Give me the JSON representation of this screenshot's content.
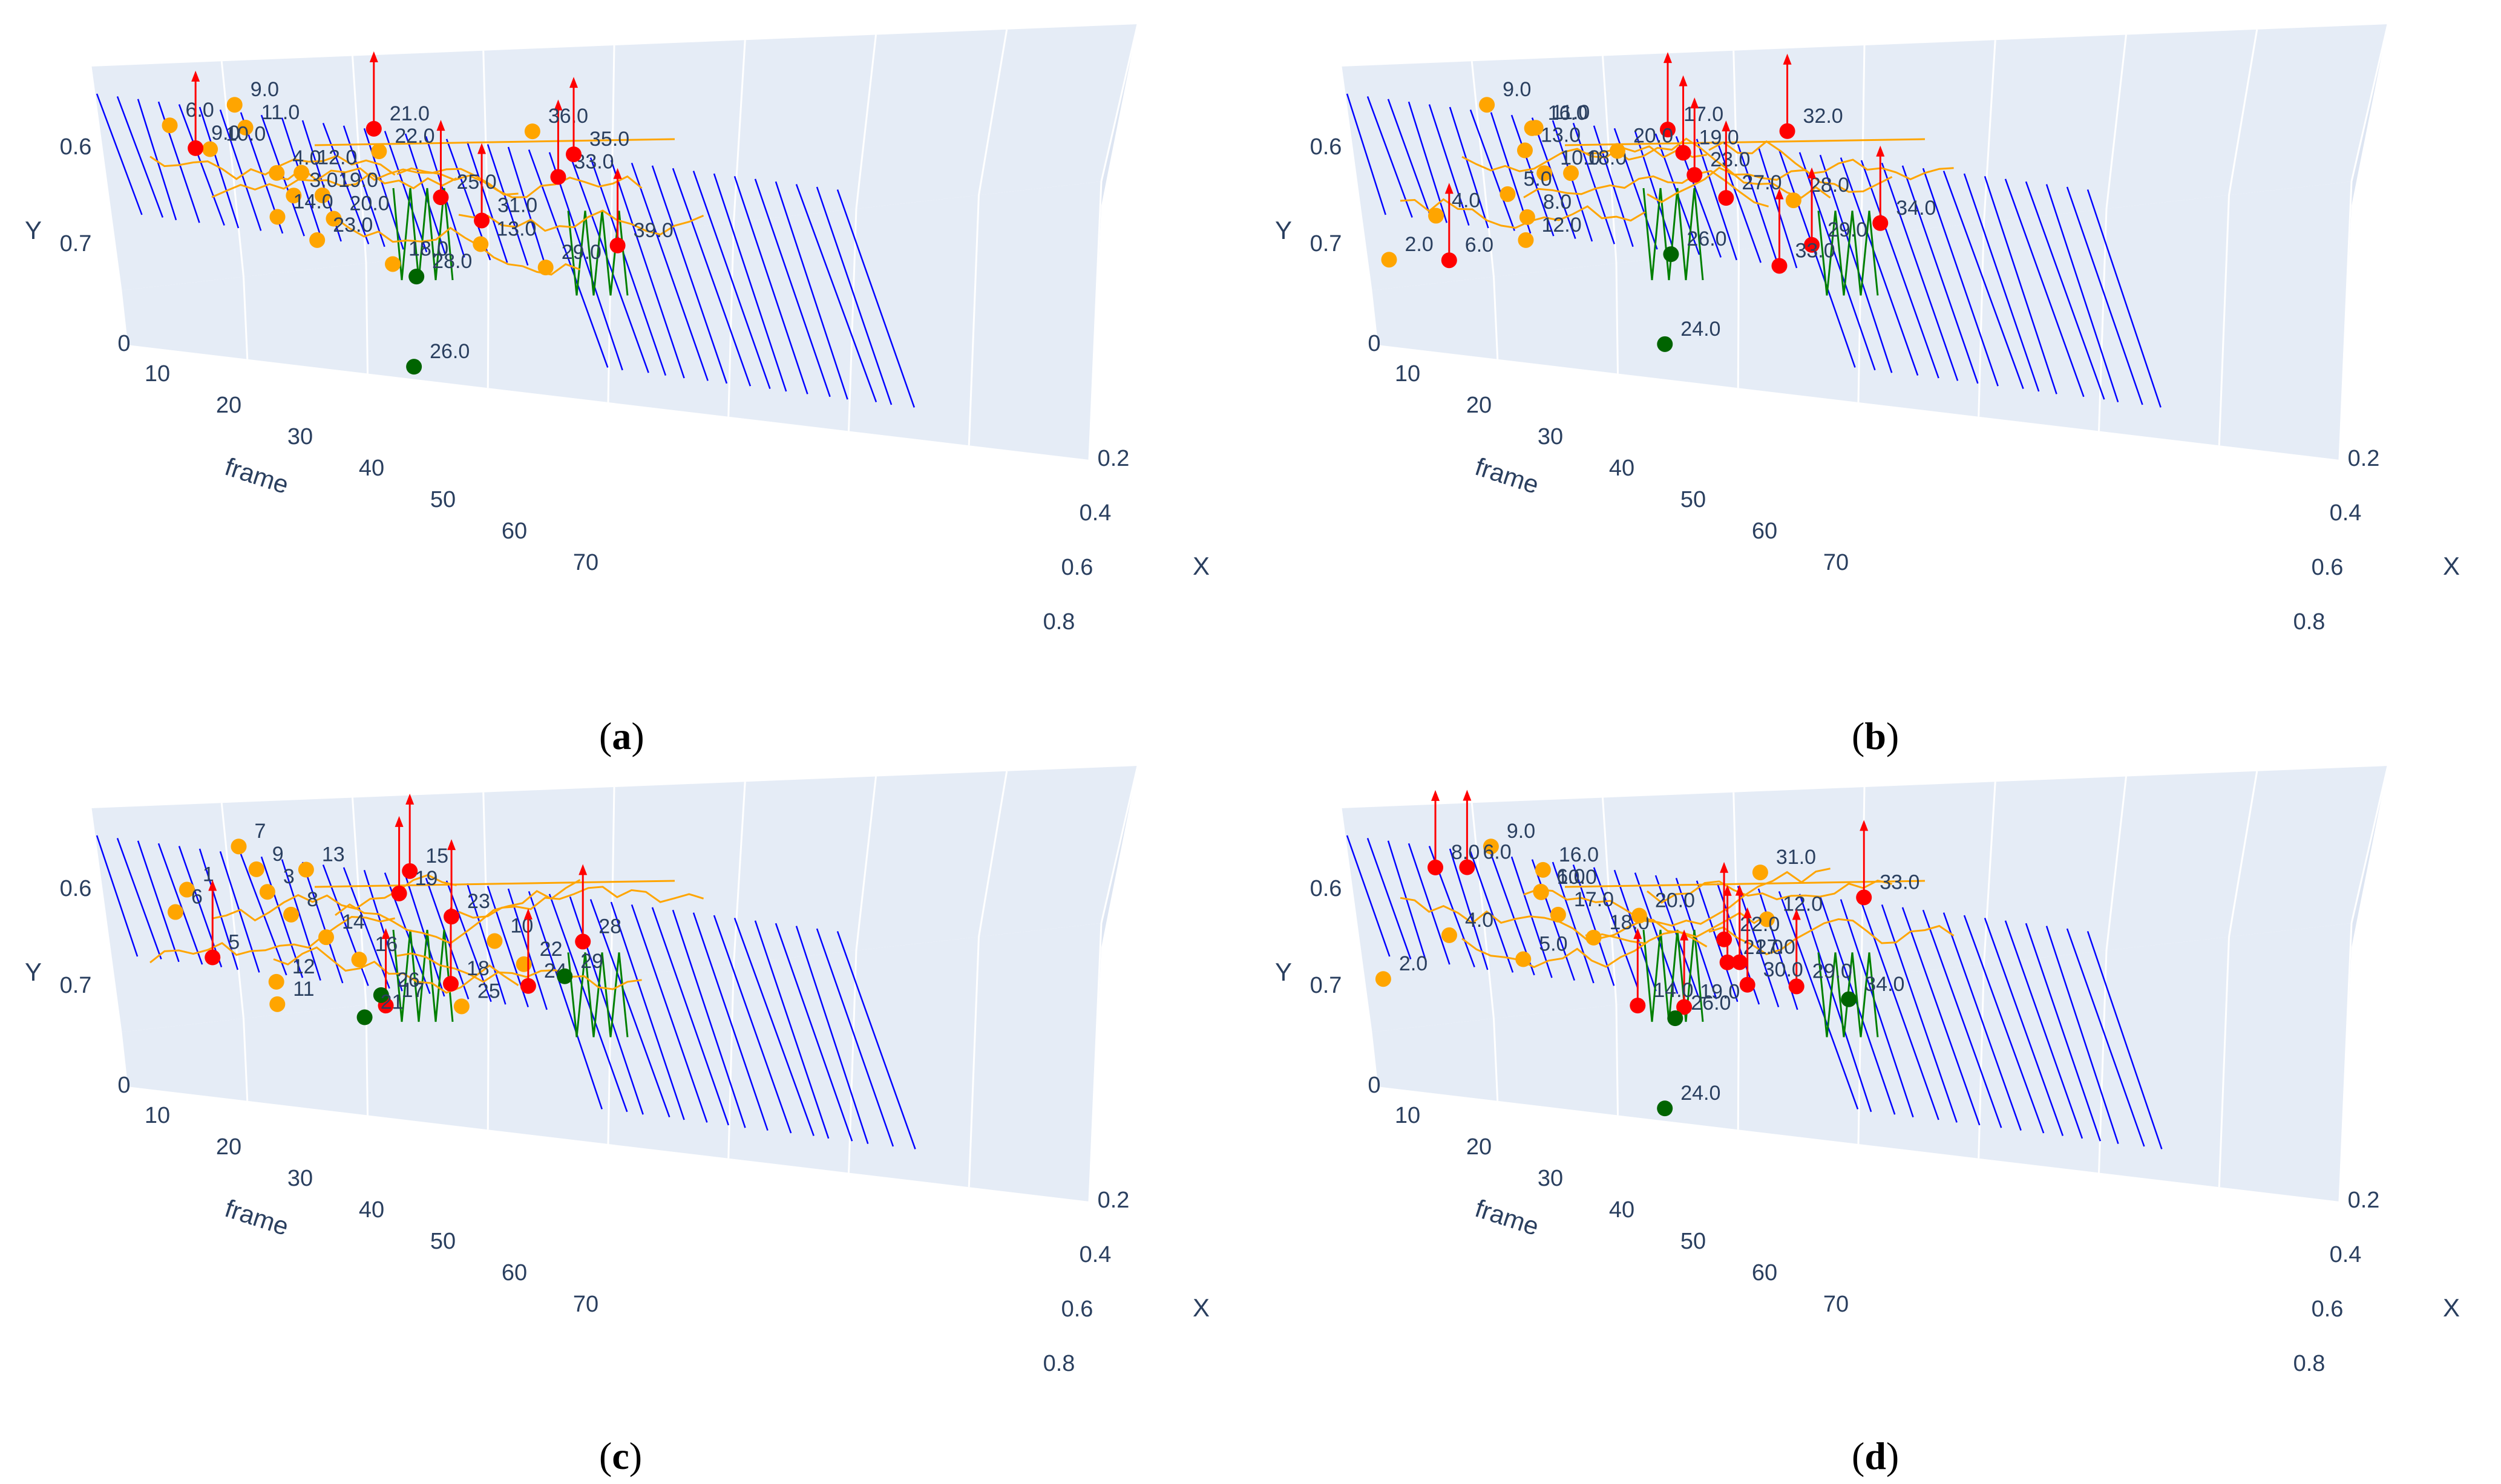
{
  "figure": {
    "colors": {
      "scene_bg": "#e5ecf6",
      "grid": "#ffffff",
      "tick_text": "#2a3f5f",
      "blue_lines": "#0000ff",
      "green": "#008000",
      "orange": "#ffa500",
      "red": "#ff0000",
      "dark_green": "#006400"
    }
  },
  "chart_data": [
    {
      "type": "scatter3d",
      "panel": "a",
      "caption_open": "(",
      "caption_letter": "a",
      "caption_close": ")",
      "xlabel": "frame",
      "ylabel": "Y",
      "zlabel": "X",
      "frame_ticks": [
        "10",
        "20",
        "30",
        "40",
        "50",
        "60",
        "70"
      ],
      "y_ticks": [
        "0.6",
        "0.7"
      ],
      "x_ticks": [
        "0.2",
        "0.4",
        "0.6",
        "0.8"
      ],
      "zero_tick": "0",
      "xlim": [
        0,
        80
      ],
      "blue_line_frames": [
        0,
        2,
        4,
        6,
        8,
        10,
        12,
        14,
        16,
        18,
        20,
        22,
        24,
        26,
        28,
        30,
        32,
        34,
        36,
        38,
        40,
        42,
        44,
        46,
        48,
        50,
        52,
        54,
        56,
        58,
        60,
        62,
        64,
        66,
        68,
        70,
        72
      ],
      "points": [
        {
          "label": "9.0",
          "frame": 12,
          "series": "orange"
        },
        {
          "label": "11.0",
          "frame": 14,
          "series": "orange"
        },
        {
          "label": "10.0",
          "frame": 10,
          "series": "orange"
        },
        {
          "label": "4.0",
          "frame": 17,
          "series": "orange"
        },
        {
          "label": "3.0",
          "frame": 18,
          "series": "orange"
        },
        {
          "label": "20.0",
          "frame": 22,
          "series": "orange"
        },
        {
          "label": "13.0",
          "frame": 37,
          "series": "orange"
        },
        {
          "label": "29.0",
          "frame": 42,
          "series": "orange"
        },
        {
          "label": "6.0",
          "frame": 6,
          "series": "orange"
        },
        {
          "label": "9.0",
          "frame": 8,
          "series": "red"
        },
        {
          "label": "12.0",
          "frame": 19,
          "series": "orange"
        },
        {
          "label": "19.0",
          "frame": 20,
          "series": "orange"
        },
        {
          "label": "14.0",
          "frame": 16,
          "series": "orange"
        },
        {
          "label": "23.0",
          "frame": 20,
          "series": "orange"
        },
        {
          "label": "18.0",
          "frame": 28,
          "series": "orange"
        },
        {
          "label": "21.0",
          "frame": 26,
          "series": "red"
        },
        {
          "label": "22.0",
          "frame": 27,
          "series": "orange"
        },
        {
          "label": "33.0",
          "frame": 43,
          "series": "red"
        },
        {
          "label": "25.0",
          "frame": 33,
          "series": "red"
        },
        {
          "label": "31.0",
          "frame": 37,
          "series": "red"
        },
        {
          "label": "39.0",
          "frame": 50,
          "series": "red"
        },
        {
          "label": "26.0",
          "frame": 30,
          "series": "green"
        },
        {
          "label": "36.0",
          "frame": 42,
          "series": "orange"
        },
        {
          "label": "35.0",
          "frame": 45,
          "series": "red"
        },
        {
          "label": "28.0",
          "frame": 30,
          "series": "green"
        }
      ]
    },
    {
      "type": "scatter3d",
      "panel": "b",
      "caption_open": "(",
      "caption_letter": "b",
      "caption_close": ")",
      "xlabel": "frame",
      "ylabel": "Y",
      "zlabel": "X",
      "frame_ticks": [
        "10",
        "20",
        "30",
        "40",
        "50",
        "60",
        "70"
      ],
      "y_ticks": [
        "0.6",
        "0.7"
      ],
      "x_ticks": [
        "0.2",
        "0.4",
        "0.6",
        "0.8"
      ],
      "zero_tick": "0",
      "xlim": [
        0,
        80
      ],
      "blue_line_frames": [
        0,
        2,
        4,
        6,
        8,
        10,
        12,
        14,
        16,
        18,
        20,
        22,
        24,
        26,
        28,
        30,
        32,
        34,
        36,
        38,
        40,
        42,
        44,
        46,
        48,
        50,
        52,
        54,
        56,
        58,
        60,
        62,
        64,
        66,
        68,
        70,
        72
      ],
      "points": [
        {
          "label": "9.0",
          "frame": 12,
          "series": "orange"
        },
        {
          "label": "16.0",
          "frame": 17,
          "series": "orange"
        },
        {
          "label": "13.0",
          "frame": 16,
          "series": "orange"
        },
        {
          "label": "10.0",
          "frame": 18,
          "series": "orange"
        },
        {
          "label": "28.0",
          "frame": 42,
          "series": "orange"
        },
        {
          "label": "4.0",
          "frame": 7,
          "series": "orange"
        },
        {
          "label": "12.0",
          "frame": 17,
          "series": "orange"
        },
        {
          "label": "2.0",
          "frame": 3,
          "series": "orange"
        },
        {
          "label": "11.0",
          "frame": 18,
          "series": "orange"
        },
        {
          "label": "19.0",
          "frame": 31,
          "series": "red"
        },
        {
          "label": "18.0",
          "frame": 21,
          "series": "orange"
        },
        {
          "label": "5.0",
          "frame": 14,
          "series": "orange"
        },
        {
          "label": "8.0",
          "frame": 17,
          "series": "orange"
        },
        {
          "label": "29.0",
          "frame": 44,
          "series": "red"
        },
        {
          "label": "6.0",
          "frame": 9,
          "series": "red"
        },
        {
          "label": "17.0",
          "frame": 30,
          "series": "red"
        },
        {
          "label": "20.0",
          "frame": 25,
          "series": "orange"
        },
        {
          "label": "23.0",
          "frame": 33,
          "series": "red"
        },
        {
          "label": "27.0",
          "frame": 36,
          "series": "red"
        },
        {
          "label": "34.0",
          "frame": 50,
          "series": "red"
        },
        {
          "label": "24.0",
          "frame": 29,
          "series": "green"
        },
        {
          "label": "33.0",
          "frame": 40,
          "series": "red"
        },
        {
          "label": "32.0",
          "frame": 41,
          "series": "red"
        },
        {
          "label": "26.0",
          "frame": 30,
          "series": "green"
        }
      ]
    },
    {
      "type": "scatter3d",
      "panel": "c",
      "caption_open": "(",
      "caption_letter": "c",
      "caption_close": ")",
      "xlabel": "frame",
      "ylabel": "Y",
      "zlabel": "X",
      "frame_ticks": [
        "10",
        "20",
        "30",
        "40",
        "50",
        "60",
        "70"
      ],
      "y_ticks": [
        "0.6",
        "0.7"
      ],
      "x_ticks": [
        "0.2",
        "0.4",
        "0.6",
        "0.8"
      ],
      "zero_tick": "0",
      "xlim": [
        0,
        80
      ],
      "blue_line_frames": [
        0,
        2,
        4,
        6,
        8,
        10,
        12,
        14,
        16,
        18,
        20,
        22,
        24,
        26,
        28,
        30,
        32,
        34,
        36,
        38,
        40,
        42,
        44,
        46,
        48,
        50,
        52,
        54,
        56,
        58,
        60,
        62,
        64,
        66,
        68,
        70,
        72
      ],
      "points": [
        {
          "label": "7",
          "frame": 12,
          "series": "orange"
        },
        {
          "label": "9",
          "frame": 14,
          "series": "orange"
        },
        {
          "label": "3",
          "frame": 15,
          "series": "orange"
        },
        {
          "label": "8",
          "frame": 17,
          "series": "orange"
        },
        {
          "label": "10",
          "frame": 37,
          "series": "orange"
        },
        {
          "label": "22",
          "frame": 41,
          "series": "orange"
        },
        {
          "label": "12",
          "frame": 17,
          "series": "orange"
        },
        {
          "label": "11",
          "frame": 17,
          "series": "orange"
        },
        {
          "label": "13",
          "frame": 19,
          "series": "orange"
        },
        {
          "label": "1",
          "frame": 7,
          "series": "orange"
        },
        {
          "label": "6",
          "frame": 7,
          "series": "orange"
        },
        {
          "label": "14",
          "frame": 21,
          "series": "orange"
        },
        {
          "label": "5",
          "frame": 10,
          "series": "red"
        },
        {
          "label": "24",
          "frame": 41,
          "series": "red"
        },
        {
          "label": "17",
          "frame": 27,
          "series": "red"
        },
        {
          "label": "15",
          "frame": 29,
          "series": "red"
        },
        {
          "label": "19",
          "frame": 29,
          "series": "red"
        },
        {
          "label": "23",
          "frame": 33,
          "series": "red"
        },
        {
          "label": "28",
          "frame": 46,
          "series": "red"
        },
        {
          "label": "16",
          "frame": 24,
          "series": "orange"
        },
        {
          "label": "18",
          "frame": 33,
          "series": "red"
        },
        {
          "label": "25",
          "frame": 34,
          "series": "orange"
        },
        {
          "label": "29",
          "frame": 44,
          "series": "green"
        },
        {
          "label": "26",
          "frame": 26,
          "series": "green"
        },
        {
          "label": "21",
          "frame": 25,
          "series": "green"
        }
      ]
    },
    {
      "type": "scatter3d",
      "panel": "d",
      "caption_open": "(",
      "caption_letter": "d",
      "caption_close": ")",
      "xlabel": "frame",
      "ylabel": "Y",
      "zlabel": "X",
      "frame_ticks": [
        "10",
        "20",
        "30",
        "40",
        "50",
        "60",
        "70"
      ],
      "y_ticks": [
        "0.6",
        "0.7"
      ],
      "x_ticks": [
        "0.2",
        "0.4",
        "0.6",
        "0.8"
      ],
      "zero_tick": "0",
      "xlim": [
        0,
        80
      ],
      "blue_line_frames": [
        0,
        2,
        4,
        6,
        8,
        10,
        12,
        14,
        16,
        18,
        20,
        22,
        24,
        26,
        28,
        30,
        32,
        34,
        36,
        38,
        40,
        42,
        44,
        46,
        48,
        50,
        52,
        54,
        56,
        58,
        60,
        62,
        64,
        66,
        68,
        70,
        72
      ],
      "points": [
        {
          "label": "9.0",
          "frame": 12,
          "series": "orange"
        },
        {
          "label": "16.0",
          "frame": 17,
          "series": "orange"
        },
        {
          "label": "10.0",
          "frame": 17,
          "series": "orange"
        },
        {
          "label": "12.0",
          "frame": 40,
          "series": "orange"
        },
        {
          "label": "4.0",
          "frame": 8,
          "series": "orange"
        },
        {
          "label": "5.0",
          "frame": 16,
          "series": "orange"
        },
        {
          "label": "2.0",
          "frame": 3,
          "series": "orange"
        },
        {
          "label": "19.0",
          "frame": 31,
          "series": "red"
        },
        {
          "label": "8.0",
          "frame": 8,
          "series": "red"
        },
        {
          "label": "6.0",
          "frame": 17,
          "series": "orange"
        },
        {
          "label": "17.0",
          "frame": 20,
          "series": "orange"
        },
        {
          "label": "18.0",
          "frame": 23,
          "series": "orange"
        },
        {
          "label": "21.0",
          "frame": 35,
          "series": "red"
        },
        {
          "label": "29.0",
          "frame": 43,
          "series": "red"
        },
        {
          "label": "14.0",
          "frame": 27,
          "series": "red"
        },
        {
          "label": "6.0",
          "frame": 10,
          "series": "red"
        },
        {
          "label": "33.0",
          "frame": 49,
          "series": "red"
        },
        {
          "label": "20.0",
          "frame": 28,
          "series": "orange"
        },
        {
          "label": "22.0",
          "frame": 35,
          "series": "red"
        },
        {
          "label": "27.0",
          "frame": 37,
          "series": "red"
        },
        {
          "label": "30.0",
          "frame": 38,
          "series": "red"
        },
        {
          "label": "24.0",
          "frame": 30,
          "series": "green"
        },
        {
          "label": "31.0",
          "frame": 39,
          "series": "orange"
        },
        {
          "label": "34.0",
          "frame": 47,
          "series": "green"
        },
        {
          "label": "26.0",
          "frame": 30,
          "series": "green"
        }
      ]
    }
  ]
}
